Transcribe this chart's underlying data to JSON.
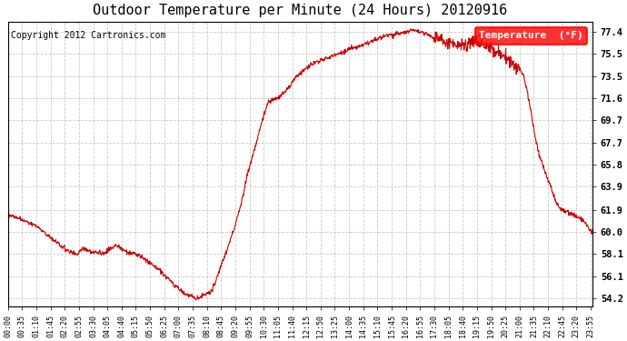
{
  "title": "Outdoor Temperature per Minute (24 Hours) 20120916",
  "copyright": "Copyright 2012 Cartronics.com",
  "legend_label": "Temperature  (°F)",
  "line_color": "#cc0000",
  "background_color": "#ffffff",
  "grid_color": "#bbbbbb",
  "yticks": [
    54.2,
    56.1,
    58.1,
    60.0,
    61.9,
    63.9,
    65.8,
    67.7,
    69.7,
    71.6,
    73.5,
    75.5,
    77.4
  ],
  "ylim": [
    53.5,
    78.2
  ],
  "xtick_labels": [
    "00:00",
    "00:35",
    "01:10",
    "01:45",
    "02:20",
    "02:55",
    "03:30",
    "04:05",
    "04:40",
    "05:15",
    "05:50",
    "06:25",
    "07:00",
    "07:35",
    "08:10",
    "08:45",
    "09:20",
    "09:55",
    "10:30",
    "11:05",
    "11:40",
    "12:15",
    "12:50",
    "13:25",
    "14:00",
    "14:35",
    "15:10",
    "15:45",
    "16:20",
    "16:55",
    "17:30",
    "18:05",
    "18:40",
    "19:15",
    "19:50",
    "20:25",
    "21:00",
    "21:35",
    "22:10",
    "22:45",
    "23:20",
    "23:55"
  ],
  "curve_key_times": [
    0,
    35,
    70,
    105,
    140,
    155,
    170,
    185,
    200,
    215,
    230,
    245,
    265,
    275,
    285,
    295,
    305,
    330,
    360,
    390,
    415,
    440,
    455,
    470,
    480,
    500,
    510,
    520,
    535,
    555,
    575,
    590,
    610,
    625,
    640,
    660,
    680,
    710,
    745,
    780,
    815,
    855,
    890,
    930,
    960,
    985,
    1000,
    1025,
    1050,
    1075,
    1100,
    1115,
    1130,
    1145,
    1155,
    1165,
    1175,
    1185,
    1195,
    1200,
    1210,
    1220,
    1230,
    1240,
    1250,
    1260,
    1270,
    1280,
    1290,
    1300,
    1310,
    1320,
    1330,
    1340,
    1350,
    1360,
    1370,
    1380,
    1390,
    1400,
    1410,
    1420,
    1430,
    1440
  ],
  "curve_key_temps": [
    61.5,
    61.0,
    60.5,
    59.5,
    58.5,
    58.2,
    58.0,
    58.5,
    58.3,
    58.2,
    58.1,
    58.3,
    58.8,
    58.6,
    58.4,
    58.2,
    58.1,
    57.8,
    57.0,
    56.1,
    55.2,
    54.5,
    54.3,
    54.2,
    54.4,
    54.8,
    55.5,
    56.5,
    58.0,
    60.0,
    62.5,
    65.0,
    67.5,
    69.5,
    71.2,
    71.6,
    72.0,
    73.5,
    74.5,
    75.0,
    75.5,
    76.0,
    76.5,
    77.0,
    77.2,
    77.4,
    77.5,
    77.3,
    76.8,
    76.5,
    76.3,
    76.2,
    76.4,
    76.5,
    76.6,
    76.5,
    76.3,
    76.1,
    75.9,
    75.7,
    75.5,
    75.3,
    75.0,
    74.7,
    74.4,
    74.2,
    73.5,
    72.0,
    70.0,
    68.0,
    66.5,
    65.5,
    64.5,
    63.5,
    62.5,
    62.0,
    61.8,
    61.7,
    61.5,
    61.3,
    61.1,
    60.8,
    60.3,
    60.0
  ]
}
